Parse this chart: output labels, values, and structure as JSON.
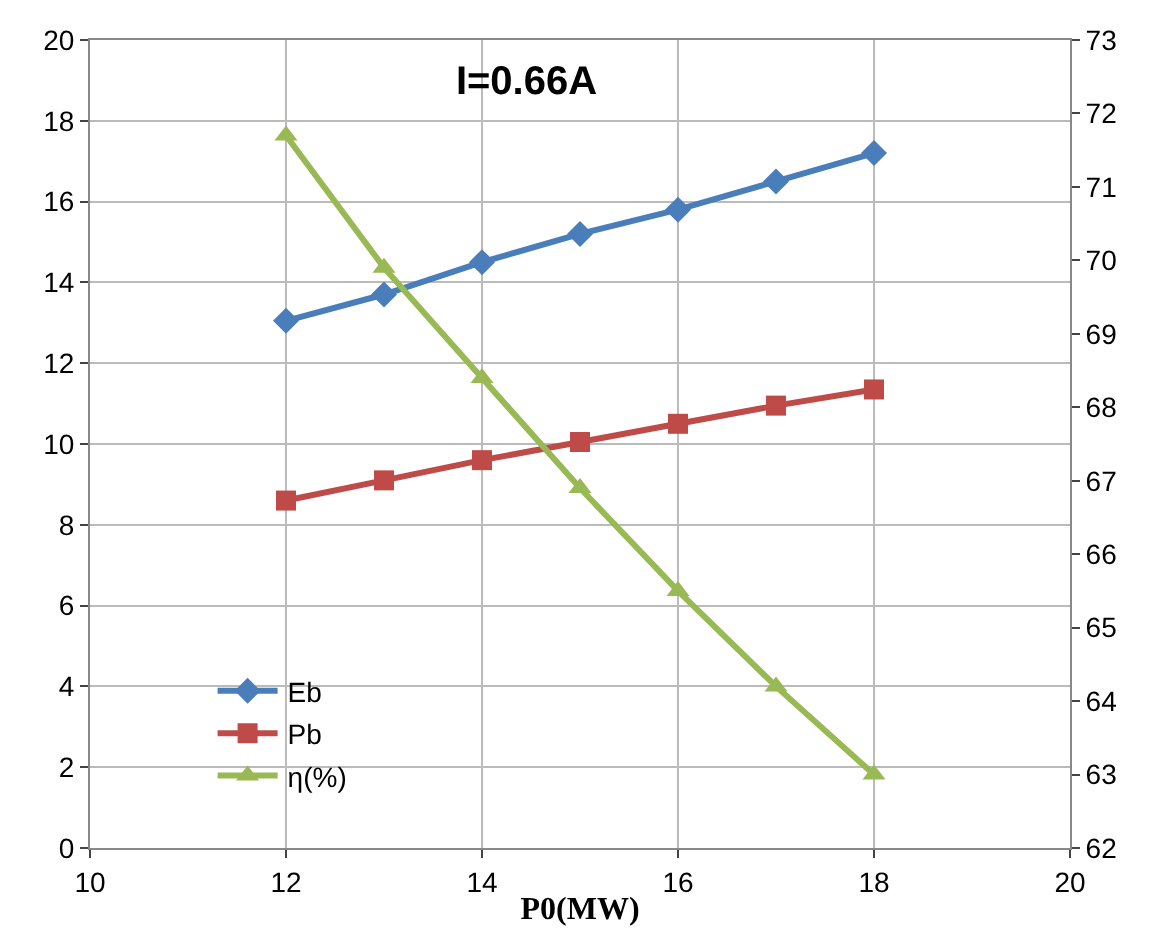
{
  "chart_data": {
    "type": "line",
    "title": "I=0.66A",
    "xlabel": "P0(MW)",
    "x": [
      12,
      13,
      14,
      15,
      16,
      17,
      18
    ],
    "series": [
      {
        "name": "Eb",
        "color": "#4a7ebb",
        "marker": "diamond",
        "values": [
          13.05,
          13.7,
          14.5,
          15.2,
          15.8,
          16.5,
          17.2
        ]
      },
      {
        "name": "Pb",
        "color": "#be4b48",
        "marker": "square",
        "values": [
          8.6,
          9.1,
          9.6,
          10.05,
          10.5,
          10.95,
          11.35
        ]
      },
      {
        "name": "η(%)",
        "color": "#98b954",
        "marker": "triangle",
        "axis": "y2",
        "values": [
          71.7,
          69.9,
          68.4,
          66.9,
          65.5,
          64.2,
          63.0
        ]
      }
    ],
    "xlim": [
      10,
      20
    ],
    "xticks": [
      10,
      12,
      14,
      16,
      18,
      20
    ],
    "ylim": [
      0,
      20
    ],
    "yticks": [
      0,
      2,
      4,
      6,
      8,
      10,
      12,
      14,
      16,
      18,
      20
    ],
    "y2lim": [
      62,
      73
    ],
    "y2ticks": [
      62,
      63,
      64,
      65,
      66,
      67,
      68,
      69,
      70,
      71,
      72,
      73
    ],
    "grid": true,
    "legend": "bottom left",
    "line_style": "solid"
  }
}
